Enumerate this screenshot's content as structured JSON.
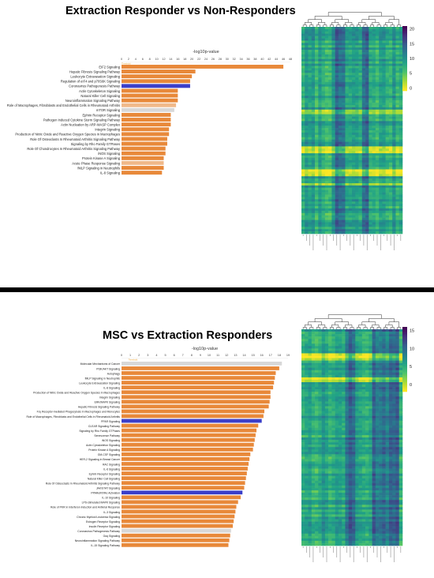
{
  "colors": {
    "bar_orange": "#E8893A",
    "bar_light": "#F0B98A",
    "bar_gray": "#D8D8D8",
    "bar_blue": "#3B3FC9",
    "threshold": "#E8A030"
  },
  "colorbar_colors": [
    "#fde725",
    "#a0da39",
    "#4ac16d",
    "#1fa187",
    "#277f8e",
    "#365c8d",
    "#46327e",
    "#440154"
  ],
  "chart_data": [
    {
      "type": "bar",
      "orientation": "horizontal",
      "title": "Extraction Responder vs Non-Responders",
      "xlabel": "-log10p-value",
      "xlim": [
        0,
        48
      ],
      "x_ticks": [
        "0",
        "2",
        "4",
        "6",
        "8",
        "10",
        "12",
        "14",
        "16",
        "18",
        "20",
        "22",
        "24",
        "26",
        "28",
        "30",
        "32",
        "34",
        "36",
        "38",
        "40",
        "42",
        "44",
        "46",
        "48"
      ],
      "threshold_label": "Threshold",
      "categories": [
        "EIF2 Signaling",
        "Hepatic Fibrosis Signaling Pathway",
        "Leukocyte Extravasation Signaling",
        "Regulation of eIF4 and p70S6K Signaling",
        "Coronavirus Pathogenesis Pathway",
        "Actin Cytoskeleton Signaling",
        "Natural Killer Cell Signaling",
        "Neuroinflammation Signaling Pathway",
        "Role of Macrophages, Fibroblasts and Endothelial Cells in Rheumatoid Arthritis",
        "mTOR Signaling",
        "Ephrin Receptor Signaling",
        "Pathogen Induced Cytokine Storm Signaling Pathway",
        "Actin Nucleation by ARP-WASP Complex",
        "Integrin Signaling",
        "Production of Nitric Oxide and Reactive Oxygen Species in Macrophages",
        "Role Of Osteoclasts In Rheumatoid Arthritis Signaling Pathway",
        "Signaling by Rho Family GTPases",
        "Role Of Chondrocytes In Rheumatoid Arthritis Signaling Pathway",
        "iNOS Signaling",
        "Protein Kinase A Signaling",
        "Acute Phase Response Signaling",
        "fMLP Signaling in Neutrophils",
        "IL-8 Signaling"
      ],
      "values": [
        46,
        21,
        20,
        19.5,
        19.5,
        16,
        16,
        16,
        15.5,
        15,
        14,
        14,
        14,
        13.5,
        13.5,
        13,
        13,
        12.5,
        12.5,
        12,
        12,
        12,
        11.5
      ],
      "bar_colors": [
        "orange",
        "orange",
        "orange",
        "orange",
        "blue",
        "orange",
        "orange",
        "orange",
        "light",
        "gray",
        "orange",
        "orange",
        "orange",
        "orange",
        "orange",
        "orange",
        "orange",
        "orange",
        "orange",
        "orange",
        "light",
        "orange",
        "orange"
      ]
    },
    {
      "type": "bar",
      "orientation": "horizontal",
      "title": "MSC vs Extraction Responders",
      "xlabel": "-log10p-value",
      "xlim": [
        0,
        19
      ],
      "x_ticks": [
        "0",
        "1",
        "2",
        "3",
        "4",
        "5",
        "6",
        "7",
        "8",
        "9",
        "10",
        "11",
        "12",
        "13",
        "14",
        "15",
        "16",
        "17",
        "18",
        "19"
      ],
      "threshold_label": "Threshold",
      "categories": [
        "Molecular Mechanisms of Cancer",
        "PI3K/AKT Signaling",
        "Autophagy",
        "fMLP Signaling in Neutrophils",
        "Leukocyte Extravasation Signaling",
        "IL-8 Signaling",
        "Production of Nitric Oxide and Reactive Oxygen Species in Macrophages",
        "Integrin Signaling",
        "ERK/MAPK Signaling",
        "Hepatic Fibrosis Signaling Pathway",
        "Fcγ Receptor-mediated Phagocytosis in Macrophages and Monocytes",
        "Role of Macrophages, Fibroblasts and Endothelial Cells in Rheumatoid Arthritis",
        "PPAR Signaling",
        "CLEAR Signaling Pathway",
        "Signaling by Rho Family GTPases",
        "Senescence Pathway",
        "iNOS Signaling",
        "Actin Cytoskeleton Signaling",
        "Protein Kinase A Signaling",
        "GM-CSF Signaling",
        "HER-2 Signaling in Breast Cancer",
        "RAC Signaling",
        "IL-6 Signaling",
        "Ephrin Receptor Signaling",
        "Natural Killer Cell Signaling",
        "Role Of Osteoclasts In Rheumatoid Arthritis Signaling Pathway",
        "JAK/STAT Signaling",
        "PPARα/RXRα Activation",
        "IL-10 Signaling",
        "LPS-stimulated MAPK Signaling",
        "Role of PKR in Interferon Induction and Antiviral Response",
        "IL-3 Signaling",
        "Chronic Myeloid Leukemia Signaling",
        "Estrogen Receptor Signaling",
        "Insulin Receptor Signaling",
        "Coronavirus Pathogenesis Pathway",
        "Gαq Signaling",
        "Neuroinflammation Signaling Pathway",
        "IL-15 Signaling Pathway"
      ],
      "values": [
        18.3,
        18,
        17.6,
        17.5,
        17.4,
        17.3,
        17,
        17,
        16.9,
        16.8,
        16.3,
        16.2,
        16,
        15.6,
        15.4,
        15.3,
        15.2,
        15.1,
        15,
        14.7,
        14.6,
        14.5,
        14.4,
        14.3,
        14.2,
        14.1,
        14,
        13.8,
        13.6,
        13.3,
        13.1,
        13,
        12.9,
        12.8,
        12.7,
        12.5,
        12.4,
        12.3,
        12.2
      ],
      "bar_colors": [
        "gray",
        "orange",
        "orange",
        "orange",
        "orange",
        "orange",
        "orange",
        "orange",
        "orange",
        "orange",
        "orange",
        "orange",
        "blue",
        "orange",
        "orange",
        "orange",
        "orange",
        "orange",
        "orange",
        "orange",
        "orange",
        "orange",
        "orange",
        "orange",
        "orange",
        "orange",
        "orange",
        "blue",
        "orange",
        "orange",
        "orange",
        "orange",
        "orange",
        "orange",
        "orange",
        "gray",
        "orange",
        "orange",
        "orange"
      ]
    },
    {
      "type": "heatmap",
      "colorbar_ticks": [
        "20",
        "15",
        "10",
        "5",
        "0"
      ],
      "colorbar_range": [
        -1,
        21
      ]
    },
    {
      "type": "heatmap",
      "colorbar_ticks": [
        "15",
        "10",
        "5",
        "0"
      ],
      "colorbar_range": [
        -2,
        16
      ]
    }
  ]
}
